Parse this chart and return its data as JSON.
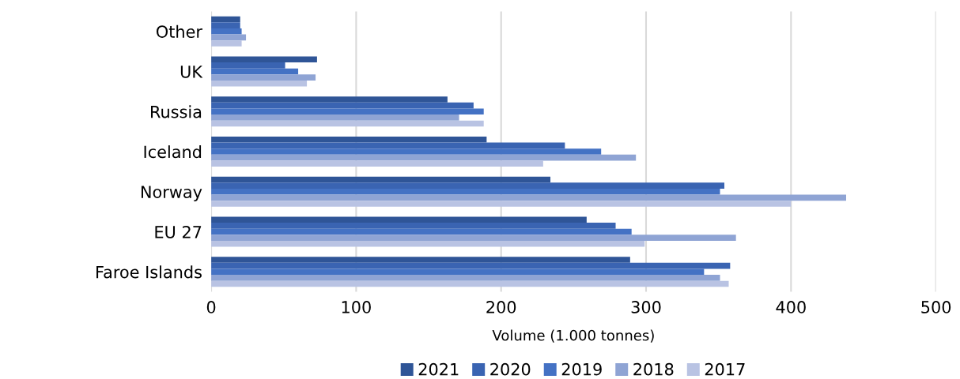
{
  "chart_data": {
    "type": "bar",
    "orientation": "horizontal",
    "xlabel": "Volume (1.000 tonnes)",
    "categories": [
      "Other",
      "UK",
      "Russia",
      "Iceland",
      "Norway",
      "EU 27",
      "Faroe Islands"
    ],
    "series": [
      {
        "name": "2021",
        "color": "#2f5597",
        "values": [
          20,
          73,
          163,
          190,
          234,
          259,
          289
        ]
      },
      {
        "name": "2020",
        "color": "#3a64b2",
        "values": [
          20,
          51,
          181,
          244,
          354,
          279,
          358
        ]
      },
      {
        "name": "2019",
        "color": "#4472c4",
        "values": [
          21,
          60,
          188,
          269,
          351,
          290,
          340
        ]
      },
      {
        "name": "2018",
        "color": "#8fa4d4",
        "values": [
          24,
          72,
          171,
          293,
          438,
          362,
          351
        ]
      },
      {
        "name": "2017",
        "color": "#b9c3e3",
        "values": [
          21,
          66,
          188,
          229,
          400,
          299,
          357
        ]
      }
    ],
    "xlim": [
      0,
      500
    ],
    "xticks": [
      0,
      100,
      200,
      300,
      400,
      500
    ],
    "grid": "x",
    "legend": "bottom"
  }
}
